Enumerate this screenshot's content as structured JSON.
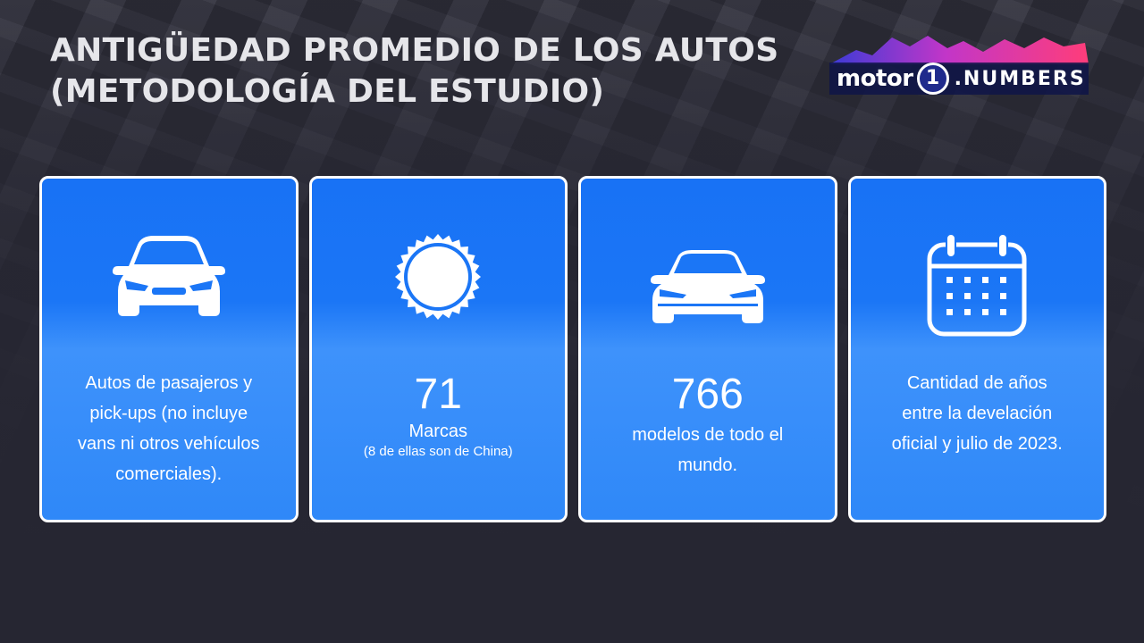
{
  "title_line1": "ANTIGÜEDAD PROMEDIO DE LOS AUTOS",
  "title_line2": "(METODOLOGÍA DEL ESTUDIO)",
  "logo": {
    "word": "motor",
    "badge": "1",
    "suffix": ".NUMBERS",
    "icon": "motor1-numbers-logo"
  },
  "colors": {
    "card": "#1b76f6",
    "card_light": "#3e92fb",
    "background": "#262631",
    "title": "#e6e6ea"
  },
  "cards": [
    {
      "icon": "car-front-icon",
      "text_lines": [
        "Autos de pasajeros y",
        "pick-ups (no incluye",
        "vans ni otros vehículos",
        "comerciales)."
      ]
    },
    {
      "icon": "seal-badge-icon",
      "number": "71",
      "label": "Marcas",
      "note": "(8 de ellas son de China)"
    },
    {
      "icon": "sedan-front-icon",
      "number": "766",
      "text_lines": [
        "modelos de todo el",
        "mundo."
      ]
    },
    {
      "icon": "calendar-icon",
      "text_lines": [
        "Cantidad de años",
        "entre la develación",
        "oficial y julio de 2023."
      ]
    }
  ]
}
